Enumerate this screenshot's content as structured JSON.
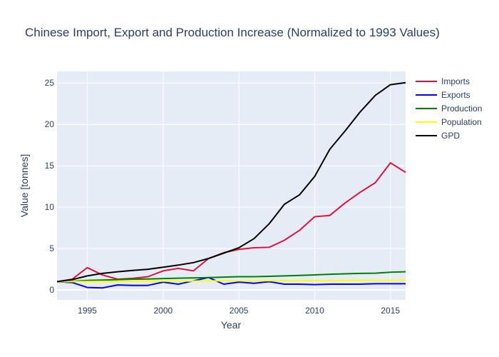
{
  "chart_data": {
    "type": "line",
    "title": "Chinese Import, Export and Production Increase (Normalized to 1993 Values)",
    "xlabel": "Year",
    "ylabel": "Value [tonnes]",
    "xlim": [
      1993,
      2016
    ],
    "ylim": [
      -1.2,
      26.4
    ],
    "x_ticks": [
      1995,
      2000,
      2005,
      2010,
      2015
    ],
    "y_ticks": [
      0,
      5,
      10,
      15,
      20,
      25
    ],
    "grid": true,
    "legend_position": "right",
    "x": [
      1993,
      1994,
      1995,
      1996,
      1997,
      1998,
      1999,
      2000,
      2001,
      2002,
      2003,
      2004,
      2005,
      2006,
      2007,
      2008,
      2009,
      2010,
      2011,
      2012,
      2013,
      2014,
      2015,
      2016
    ],
    "series": [
      {
        "name": "Imports",
        "color": "#dc143c",
        "values": [
          1.0,
          1.3,
          2.7,
          1.8,
          1.3,
          1.4,
          1.6,
          2.3,
          2.6,
          2.3,
          3.8,
          4.5,
          4.9,
          5.1,
          5.15,
          6.0,
          7.2,
          8.85,
          9.0,
          10.5,
          11.8,
          12.95,
          15.35,
          14.2
        ]
      },
      {
        "name": "Exports",
        "color": "#0000ff",
        "values": [
          1.0,
          0.9,
          0.3,
          0.25,
          0.6,
          0.55,
          0.55,
          0.95,
          0.7,
          1.1,
          1.5,
          0.7,
          0.95,
          0.8,
          1.0,
          0.7,
          0.7,
          0.65,
          0.7,
          0.7,
          0.7,
          0.75,
          0.75,
          0.75
        ]
      },
      {
        "name": "Production",
        "color": "#008000",
        "values": [
          1.0,
          1.05,
          1.15,
          1.2,
          1.25,
          1.3,
          1.33,
          1.38,
          1.42,
          1.45,
          1.5,
          1.55,
          1.6,
          1.6,
          1.65,
          1.7,
          1.75,
          1.82,
          1.9,
          1.95,
          2.0,
          2.03,
          2.15,
          2.2
        ]
      },
      {
        "name": "Population",
        "color": "#ffff00",
        "values": [
          1.0,
          1.01,
          1.02,
          1.03,
          1.04,
          1.05,
          1.06,
          1.07,
          1.07,
          1.08,
          1.09,
          1.1,
          1.1,
          1.11,
          1.12,
          1.12,
          1.13,
          1.14,
          1.14,
          1.15,
          1.16,
          1.16,
          1.17,
          1.18
        ]
      },
      {
        "name": "GPD",
        "color": "#000000",
        "values": [
          1.0,
          1.25,
          1.7,
          2.0,
          2.2,
          2.35,
          2.5,
          2.75,
          3.0,
          3.3,
          3.8,
          4.45,
          5.1,
          6.2,
          8.0,
          10.35,
          11.5,
          13.7,
          17.0,
          19.2,
          21.5,
          23.5,
          24.8,
          25.05
        ]
      }
    ]
  }
}
